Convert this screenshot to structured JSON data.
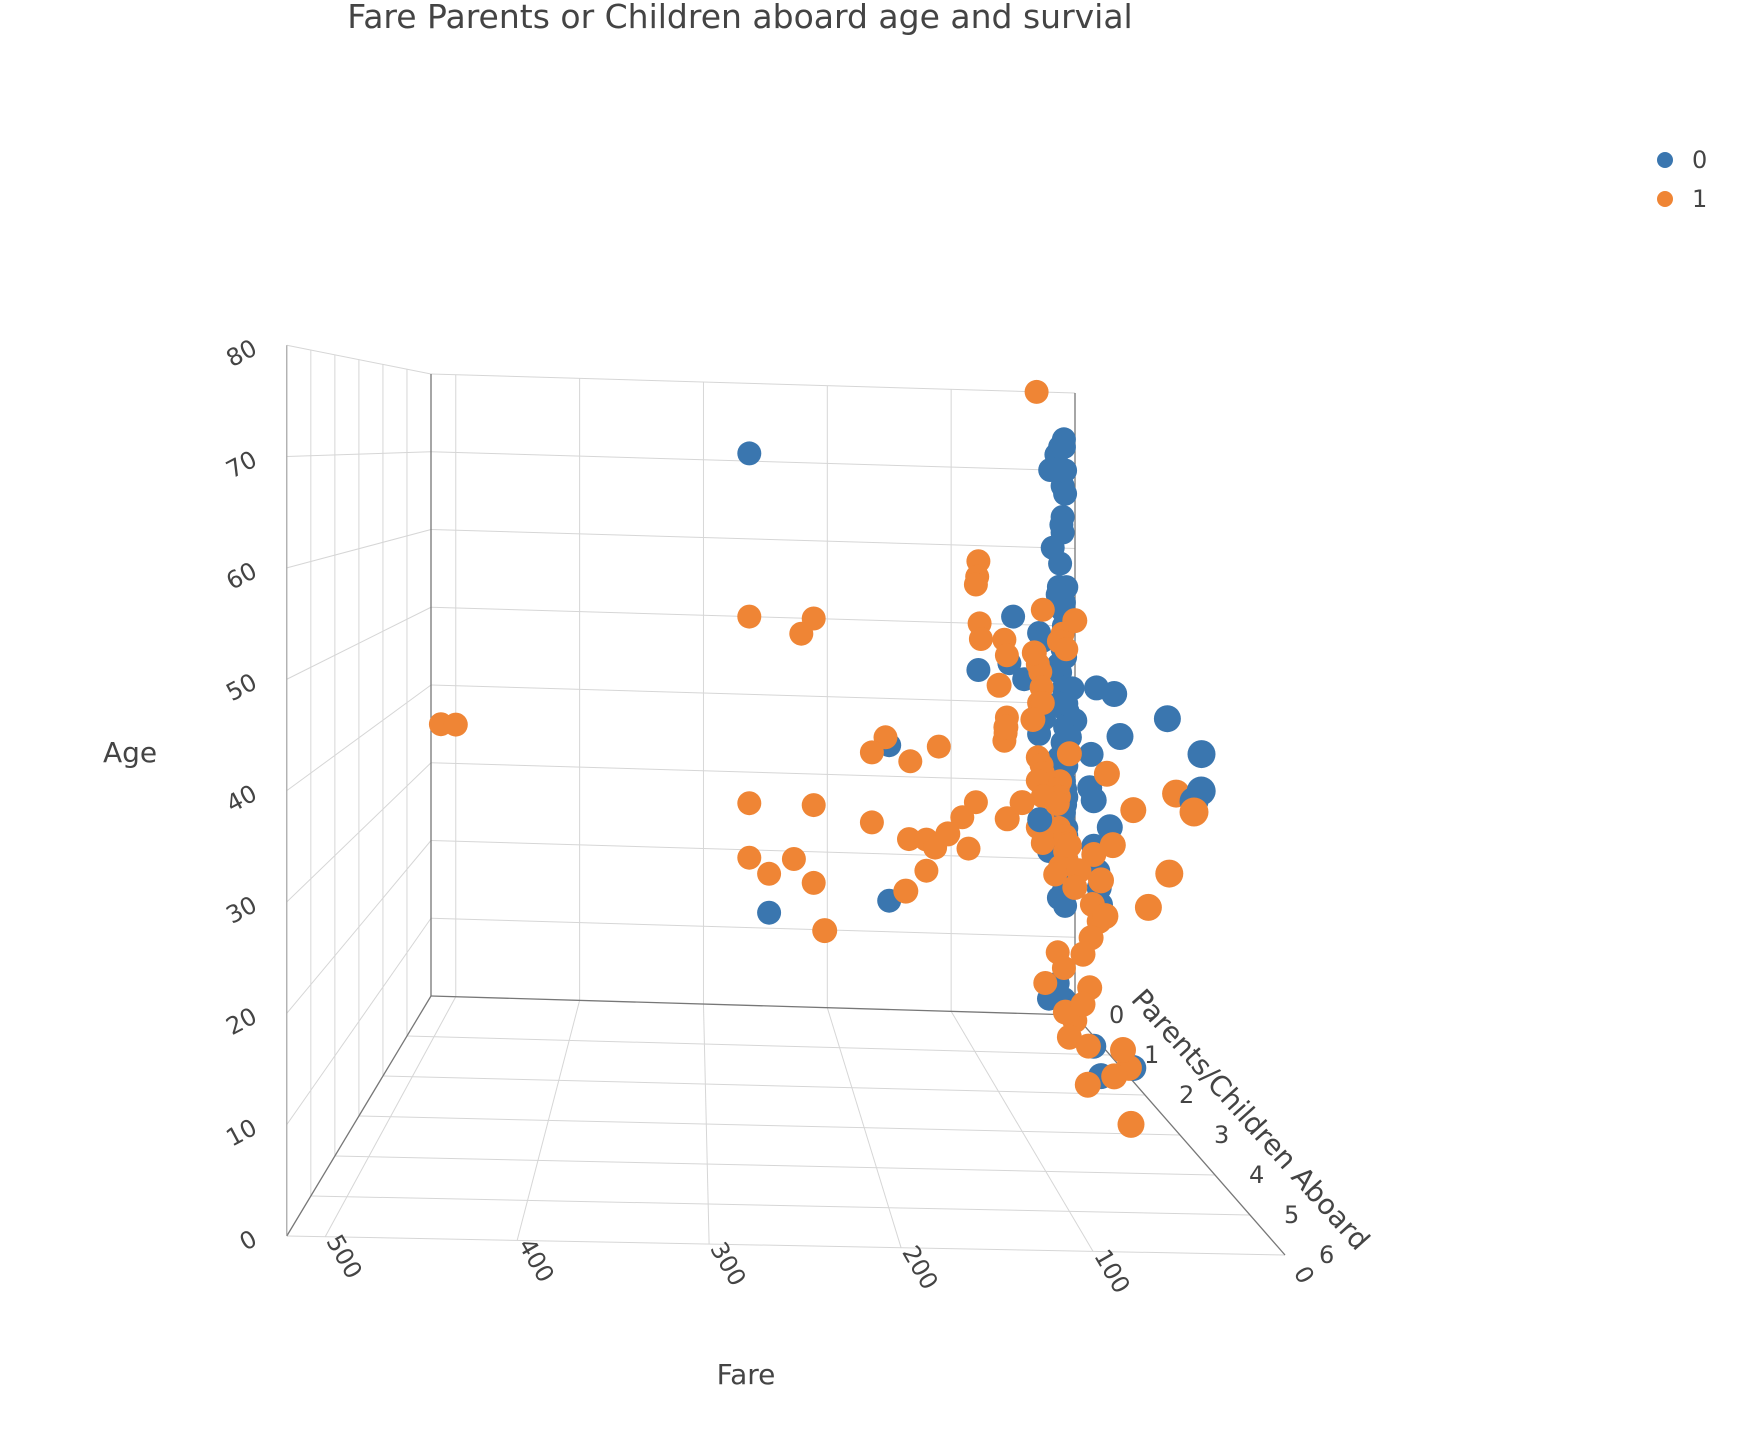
{
  "chart_data": {
    "type": "scatter3d",
    "title": "Fare Parents or Children aboard age and survial",
    "axes": {
      "x": {
        "label": "Fare",
        "ticks": [
          "0",
          "100",
          "200",
          "300",
          "400",
          "500"
        ],
        "range": [
          0,
          520
        ]
      },
      "y": {
        "label": "Parents/Children Aboard",
        "ticks": [
          "0",
          "1",
          "2",
          "3",
          "4",
          "5",
          "6"
        ],
        "range": [
          0,
          6
        ]
      },
      "z": {
        "label": "Age",
        "ticks": [
          "0",
          "10",
          "20",
          "30",
          "40",
          "50",
          "60",
          "70",
          "80"
        ],
        "range": [
          0,
          80
        ]
      }
    },
    "legend": {
      "placement": "top-right"
    },
    "series": [
      {
        "name": "0",
        "color": "#3a76af",
        "points": [
          [
            263,
            0,
            71
          ],
          [
            9,
            0,
            74
          ],
          [
            15,
            0,
            72
          ],
          [
            12,
            0,
            73
          ],
          [
            9,
            0,
            73
          ],
          [
            20,
            0,
            70
          ],
          [
            10,
            0,
            68
          ],
          [
            8,
            0,
            70
          ],
          [
            8,
            0,
            67
          ],
          [
            10,
            0,
            64
          ],
          [
            11,
            0,
            63
          ],
          [
            10,
            0,
            62
          ],
          [
            18,
            0,
            60
          ],
          [
            12,
            0,
            58
          ],
          [
            7,
            0,
            55
          ],
          [
            13,
            0,
            55
          ],
          [
            14,
            0,
            54
          ],
          [
            9,
            0,
            53
          ],
          [
            50,
            0,
            51
          ],
          [
            29,
            0,
            49
          ],
          [
            26,
            0,
            48
          ],
          [
            10,
            0,
            47
          ],
          [
            8,
            0,
            46
          ],
          [
            53,
            0,
            45
          ],
          [
            78,
            0,
            44
          ],
          [
            12,
            0,
            44
          ],
          [
            41,
            0,
            43
          ],
          [
            9,
            0,
            42
          ],
          [
            8,
            0,
            41
          ],
          [
            2,
            0,
            42
          ],
          [
            13,
            0,
            40
          ],
          [
            7,
            0,
            39
          ],
          [
            6,
            0,
            39
          ],
          [
            25,
            0,
            38
          ],
          [
            8,
            0,
            37
          ],
          [
            29,
            0,
            36
          ],
          [
            9,
            0,
            35
          ],
          [
            8,
            0,
            34
          ],
          [
            6,
            0,
            34
          ],
          [
            150,
            0,
            34
          ],
          [
            13,
            0,
            33
          ],
          [
            9,
            0,
            33
          ],
          [
            8,
            0,
            33
          ],
          [
            7,
            0,
            32
          ],
          [
            12,
            0,
            31
          ],
          [
            26,
            0,
            30
          ],
          [
            9,
            0,
            30
          ],
          [
            8,
            0,
            29
          ],
          [
            8,
            0,
            28
          ],
          [
            11,
            0,
            28
          ],
          [
            7,
            0,
            28
          ],
          [
            8,
            0,
            27
          ],
          [
            9,
            0,
            26
          ],
          [
            10,
            0,
            25
          ],
          [
            13,
            0,
            24
          ],
          [
            8,
            0,
            24
          ],
          [
            7,
            0,
            23
          ],
          [
            14,
            0,
            22
          ],
          [
            8,
            0,
            21
          ],
          [
            21,
            0,
            21
          ],
          [
            7,
            0,
            20
          ],
          [
            8,
            0,
            19
          ],
          [
            10,
            0,
            18
          ],
          [
            8,
            0,
            17
          ],
          [
            9,
            0,
            16
          ],
          [
            7,
            0,
            16
          ],
          [
            13,
            0,
            15
          ],
          [
            8,
            0,
            14
          ],
          [
            247,
            0,
            12
          ],
          [
            150,
            0,
            14
          ],
          [
            10,
            1,
            44
          ],
          [
            14,
            1,
            36
          ],
          [
            15,
            1,
            32
          ],
          [
            8,
            1,
            20
          ],
          [
            26,
            1,
            40
          ],
          [
            30,
            1,
            38
          ],
          [
            52,
            1,
            28
          ],
          [
            12,
            1,
            25
          ],
          [
            9,
            1,
            22
          ],
          [
            7,
            1,
            18
          ],
          [
            21,
            2,
            45
          ],
          [
            24,
            2,
            30
          ],
          [
            30,
            2,
            2
          ],
          [
            35,
            2,
            33
          ],
          [
            8,
            3,
            44
          ],
          [
            38,
            3,
            42
          ],
          [
            8,
            4,
            42
          ],
          [
            31,
            5,
            39
          ],
          [
            27,
            5,
            40
          ],
          [
            14,
            0,
            4
          ],
          [
            7,
            0,
            24
          ],
          [
            9,
            0,
            2
          ],
          [
            12,
            1,
            1
          ],
          [
            8,
            2,
            3
          ],
          [
            21,
            0,
            2
          ],
          [
            10,
            0,
            35
          ],
          [
            7,
            0,
            40
          ],
          [
            9,
            0,
            50
          ],
          [
            13,
            0,
            45
          ],
          [
            10,
            0,
            52
          ]
        ]
      },
      {
        "name": "1",
        "color": "#ef8535",
        "points": [
          [
            31,
            0,
            80
          ],
          [
            512,
            0,
            35
          ],
          [
            500,
            0,
            35
          ],
          [
            78,
            0,
            58
          ],
          [
            79,
            0,
            56
          ],
          [
            80,
            0,
            55
          ],
          [
            263,
            0,
            50
          ],
          [
            211,
            0,
            50
          ],
          [
            221,
            0,
            48
          ],
          [
            26,
            0,
            52
          ],
          [
            77,
            0,
            50
          ],
          [
            76,
            0,
            48
          ],
          [
            57,
            0,
            48
          ],
          [
            55,
            0,
            46
          ],
          [
            30,
            0,
            45
          ],
          [
            28,
            0,
            44
          ],
          [
            27,
            0,
            42
          ],
          [
            29,
            0,
            40
          ],
          [
            10,
            0,
            49
          ],
          [
            13,
            0,
            48
          ],
          [
            7,
            0,
            47
          ],
          [
            26,
            0,
            40
          ],
          [
            55,
            0,
            38
          ],
          [
            56,
            0,
            36
          ],
          [
            57,
            0,
            35
          ],
          [
            110,
            0,
            34
          ],
          [
            133,
            0,
            32
          ],
          [
            30,
            0,
            33
          ],
          [
            27,
            0,
            32
          ],
          [
            26,
            0,
            31
          ],
          [
            30,
            0,
            30
          ],
          [
            12,
            0,
            30
          ],
          [
            14,
            0,
            29
          ],
          [
            13,
            0,
            28
          ],
          [
            26,
            0,
            28
          ],
          [
            80,
            0,
            27
          ],
          [
            91,
            0,
            25
          ],
          [
            26,
            0,
            25
          ],
          [
            30,
            0,
            24
          ],
          [
            13,
            0,
            24
          ],
          [
            8,
            0,
            23
          ],
          [
            7,
            0,
            22
          ],
          [
            26,
            0,
            22
          ],
          [
            8,
            0,
            21
          ],
          [
            7,
            0,
            20
          ],
          [
            12,
            0,
            19
          ],
          [
            16,
            0,
            18
          ],
          [
            153,
            0,
            35
          ],
          [
            164,
            0,
            33
          ],
          [
            211,
            0,
            26
          ],
          [
            164,
            0,
            24
          ],
          [
            134,
            0,
            22
          ],
          [
            120,
            0,
            22
          ],
          [
            113,
            0,
            21
          ],
          [
            86,
            0,
            21
          ],
          [
            227,
            0,
            19
          ],
          [
            263,
            0,
            19
          ],
          [
            247,
            0,
            17
          ],
          [
            211,
            0,
            16
          ],
          [
            120,
            0,
            18
          ],
          [
            26,
            1,
            52
          ],
          [
            56,
            1,
            48
          ],
          [
            82,
            1,
            44
          ],
          [
            57,
            1,
            40
          ],
          [
            77,
            1,
            39
          ],
          [
            30,
            1,
            36
          ],
          [
            39,
            1,
            30
          ],
          [
            76,
            1,
            28
          ],
          [
            30,
            1,
            25
          ],
          [
            12,
            1,
            24
          ],
          [
            23,
            1,
            22
          ],
          [
            26,
            1,
            20
          ],
          [
            13,
            1,
            18
          ],
          [
            8,
            1,
            16
          ],
          [
            14,
            1,
            14
          ],
          [
            20,
            1,
            12
          ],
          [
            26,
            1,
            4
          ],
          [
            30,
            1,
            2
          ],
          [
            16,
            1,
            1
          ],
          [
            33,
            1,
            5
          ],
          [
            65,
            1,
            30
          ],
          [
            120,
            1,
            26
          ],
          [
            151,
            1,
            19
          ],
          [
            211,
            1,
            14
          ],
          [
            26,
            2,
            36
          ],
          [
            8,
            2,
            32
          ],
          [
            22,
            2,
            28
          ],
          [
            30,
            2,
            24
          ],
          [
            27,
            2,
            20
          ],
          [
            11,
            2,
            3
          ],
          [
            39,
            2,
            1
          ],
          [
            15,
            2,
            5
          ],
          [
            21,
            2,
            2
          ],
          [
            20,
            3,
            24
          ],
          [
            31,
            3,
            1
          ],
          [
            23,
            4,
            38
          ],
          [
            27,
            4,
            30
          ],
          [
            31,
            5,
            38
          ],
          [
            14,
            0,
            8
          ],
          [
            9,
            0,
            6
          ],
          [
            24,
            0,
            4
          ],
          [
            15,
            1,
            8
          ],
          [
            20,
            1,
            6
          ],
          [
            263,
            0,
            26
          ]
        ]
      }
    ]
  }
}
